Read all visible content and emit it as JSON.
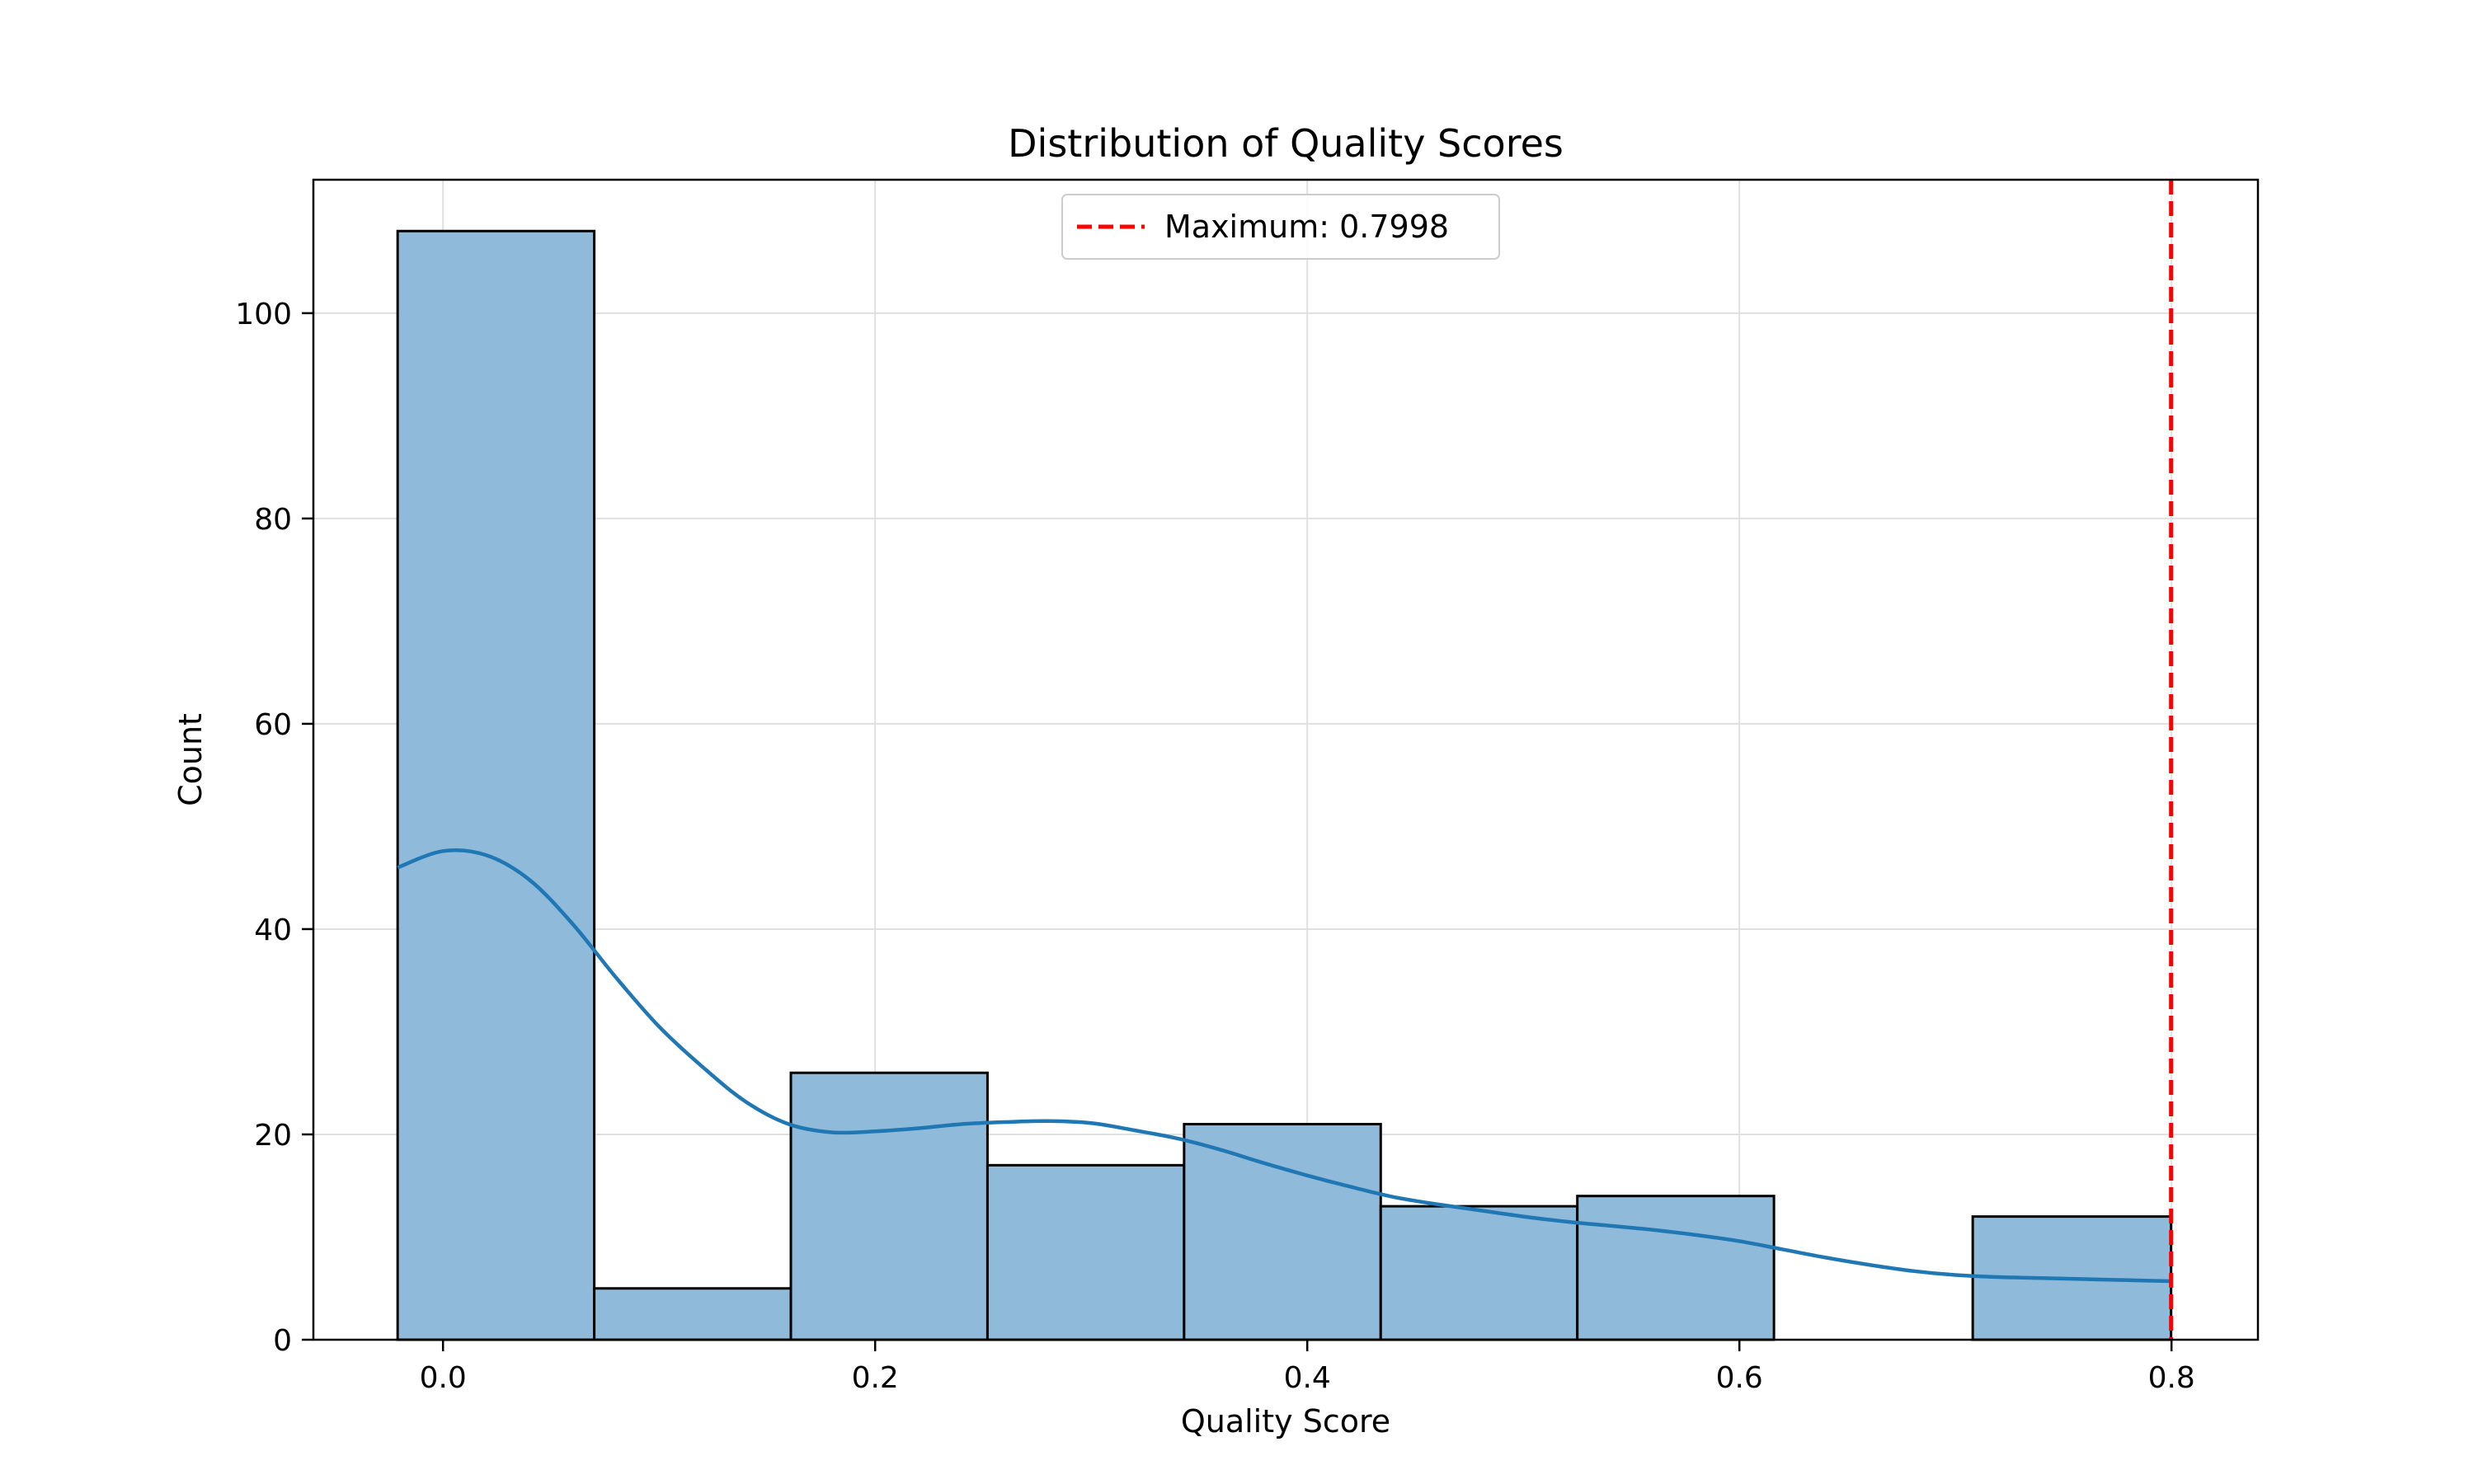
{
  "chart_data": {
    "type": "bar",
    "title": "Distribution of Quality Scores",
    "xlabel": "Quality Score",
    "ylabel": "Count",
    "xlim": [
      -0.06,
      0.84
    ],
    "ylim": [
      0,
      113
    ],
    "xticks": [
      0.0,
      0.2,
      0.4,
      0.6,
      0.8
    ],
    "xtick_labels": [
      "0.0",
      "0.2",
      "0.4",
      "0.6",
      "0.8"
    ],
    "yticks": [
      0,
      20,
      40,
      60,
      80,
      100
    ],
    "ytick_labels": [
      "0",
      "20",
      "40",
      "60",
      "80",
      "100"
    ],
    "grid": true,
    "bins": [
      {
        "x0": -0.021,
        "x1": 0.07,
        "count": 108
      },
      {
        "x0": 0.07,
        "x1": 0.161,
        "count": 5
      },
      {
        "x0": 0.161,
        "x1": 0.252,
        "count": 26
      },
      {
        "x0": 0.252,
        "x1": 0.343,
        "count": 17
      },
      {
        "x0": 0.343,
        "x1": 0.434,
        "count": 21
      },
      {
        "x0": 0.434,
        "x1": 0.525,
        "count": 13
      },
      {
        "x0": 0.525,
        "x1": 0.616,
        "count": 14
      },
      {
        "x0": 0.616,
        "x1": 0.708,
        "count": 0
      },
      {
        "x0": 0.708,
        "x1": 0.7998,
        "count": 12
      }
    ],
    "kde": {
      "x": [
        -0.021,
        0.0,
        0.02,
        0.04,
        0.06,
        0.08,
        0.1,
        0.12,
        0.14,
        0.16,
        0.18,
        0.2,
        0.22,
        0.24,
        0.26,
        0.28,
        0.3,
        0.32,
        0.34,
        0.36,
        0.38,
        0.4,
        0.42,
        0.44,
        0.46,
        0.48,
        0.5,
        0.52,
        0.54,
        0.56,
        0.58,
        0.6,
        0.62,
        0.64,
        0.66,
        0.68,
        0.7,
        0.72,
        0.74,
        0.76,
        0.78,
        0.7998
      ],
      "y": [
        46.0,
        47.6,
        47.2,
        44.8,
        40.5,
        35.3,
        30.5,
        26.6,
        23.2,
        21.0,
        20.2,
        20.3,
        20.6,
        21.0,
        21.2,
        21.3,
        21.1,
        20.4,
        19.6,
        18.5,
        17.2,
        16.0,
        14.9,
        13.9,
        13.2,
        12.6,
        12.0,
        11.5,
        11.1,
        10.7,
        10.2,
        9.6,
        8.8,
        8.0,
        7.3,
        6.7,
        6.3,
        6.1,
        6.0,
        5.9,
        5.8,
        5.7
      ]
    },
    "max_line": {
      "x": 0.7998,
      "label": "Maximum: 0.7998"
    },
    "legend_position": "top-center",
    "colors": {
      "bar_fill": "#8fbad9",
      "bar_edge": "#000000",
      "kde": "#1f77b4",
      "max_line": "#ff0000",
      "grid": "#e0e0e0"
    }
  }
}
